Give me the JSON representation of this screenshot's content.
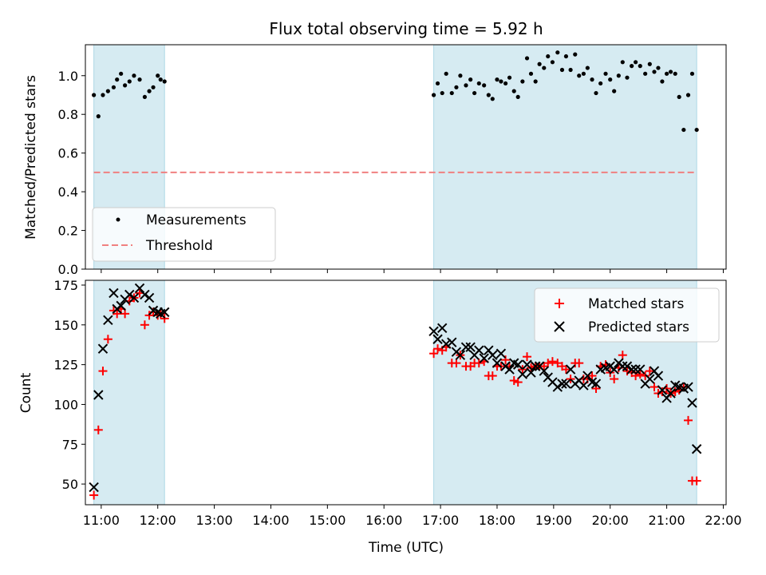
{
  "title": "Flux total observing time = 5.92 h",
  "chart_data": [
    {
      "type": "scatter",
      "ylabel": "Matched/Predicted stars",
      "xlabel": "",
      "xlim": [
        10.72,
        22.05
      ],
      "ylim": [
        0.0,
        1.16
      ],
      "yticks": [
        0.0,
        0.2,
        0.4,
        0.6,
        0.8,
        1.0
      ],
      "ytick_labels": [
        "0.0",
        "0.2",
        "0.4",
        "0.6",
        "0.8",
        "1.0"
      ],
      "legend_position": "lower-left",
      "observing_windows": [
        [
          10.87,
          12.12
        ],
        [
          16.88,
          21.53
        ]
      ],
      "series": [
        {
          "name": "Measurements",
          "marker": "dot",
          "color": "#000000",
          "x": [
            10.87,
            10.95,
            11.03,
            11.12,
            11.22,
            11.28,
            11.35,
            11.42,
            11.5,
            11.58,
            11.68,
            11.77,
            11.85,
            11.92,
            12.0,
            12.05,
            12.12,
            16.88,
            16.95,
            17.03,
            17.1,
            17.2,
            17.28,
            17.35,
            17.45,
            17.53,
            17.6,
            17.68,
            17.77,
            17.85,
            17.92,
            18.0,
            18.07,
            18.15,
            18.22,
            18.3,
            18.37,
            18.45,
            18.53,
            18.6,
            18.68,
            18.75,
            18.83,
            18.9,
            18.98,
            19.07,
            19.15,
            19.22,
            19.3,
            19.38,
            19.45,
            19.53,
            19.6,
            19.68,
            19.75,
            19.83,
            19.92,
            20.0,
            20.07,
            20.15,
            20.22,
            20.3,
            20.38,
            20.45,
            20.53,
            20.62,
            20.7,
            20.78,
            20.85,
            20.92,
            21.0,
            21.07,
            21.15,
            21.22,
            21.3,
            21.38,
            21.45,
            21.53
          ],
          "y": [
            0.9,
            0.79,
            0.9,
            0.92,
            0.94,
            0.98,
            1.01,
            0.95,
            0.97,
            1.0,
            0.98,
            0.89,
            0.92,
            0.94,
            1.0,
            0.98,
            0.97,
            0.9,
            0.96,
            0.91,
            1.01,
            0.91,
            0.94,
            1.0,
            0.95,
            0.98,
            0.91,
            0.96,
            0.95,
            0.9,
            0.88,
            0.98,
            0.97,
            0.96,
            0.99,
            0.92,
            0.89,
            0.97,
            1.09,
            1.01,
            0.97,
            1.06,
            1.04,
            1.1,
            1.07,
            1.12,
            1.03,
            1.1,
            1.03,
            1.11,
            1.0,
            1.01,
            1.04,
            0.98,
            0.91,
            0.96,
            1.01,
            0.98,
            0.92,
            1.0,
            1.07,
            0.99,
            1.05,
            1.07,
            1.05,
            1.01,
            1.06,
            1.02,
            1.04,
            0.97,
            1.01,
            1.02,
            1.01,
            0.89,
            0.72,
            0.9,
            1.01,
            0.72
          ]
        },
        {
          "name": "Threshold",
          "marker": "dashed-line",
          "color": "#f08080",
          "x": [
            10.87,
            21.53
          ],
          "y": [
            0.5,
            0.5
          ]
        }
      ]
    },
    {
      "type": "scatter",
      "ylabel": "Count",
      "xlabel": "Time (UTC)",
      "xlim": [
        10.72,
        22.05
      ],
      "ylim": [
        37,
        178
      ],
      "yticks": [
        50,
        75,
        100,
        125,
        150,
        175
      ],
      "ytick_labels": [
        "50",
        "75",
        "100",
        "125",
        "150",
        "175"
      ],
      "xticks": [
        11,
        12,
        13,
        14,
        15,
        16,
        17,
        18,
        19,
        20,
        21,
        22
      ],
      "xtick_labels": [
        "11:00",
        "12:00",
        "13:00",
        "14:00",
        "15:00",
        "16:00",
        "17:00",
        "18:00",
        "19:00",
        "20:00",
        "21:00",
        "22:00"
      ],
      "legend_position": "top-right",
      "observing_windows": [
        [
          10.87,
          12.12
        ],
        [
          16.88,
          21.53
        ]
      ],
      "series": [
        {
          "name": "Matched stars",
          "marker": "plus",
          "color": "#ff0000",
          "x": [
            10.87,
            10.95,
            11.03,
            11.12,
            11.22,
            11.28,
            11.35,
            11.42,
            11.5,
            11.58,
            11.68,
            11.77,
            11.85,
            11.92,
            12.0,
            12.05,
            12.12,
            16.88,
            16.95,
            17.03,
            17.1,
            17.2,
            17.28,
            17.35,
            17.45,
            17.53,
            17.6,
            17.68,
            17.77,
            17.85,
            17.92,
            18.0,
            18.07,
            18.15,
            18.22,
            18.3,
            18.37,
            18.45,
            18.53,
            18.6,
            18.68,
            18.75,
            18.83,
            18.9,
            18.98,
            19.07,
            19.15,
            19.22,
            19.3,
            19.38,
            19.45,
            19.53,
            19.6,
            19.68,
            19.75,
            19.83,
            19.92,
            20.0,
            20.07,
            20.15,
            20.22,
            20.3,
            20.38,
            20.45,
            20.53,
            20.62,
            20.7,
            20.78,
            20.85,
            20.92,
            21.0,
            21.07,
            21.15,
            21.22,
            21.3,
            21.38,
            21.45,
            21.53
          ],
          "y": [
            43,
            84,
            121,
            141,
            159,
            157,
            160,
            157,
            165,
            167,
            170,
            150,
            156,
            158,
            156,
            157,
            154,
            132,
            135,
            134,
            136,
            126,
            126,
            131,
            124,
            124,
            126,
            126,
            127,
            118,
            118,
            124,
            124,
            128,
            124,
            115,
            114,
            122,
            130,
            123,
            124,
            124,
            124,
            126,
            127,
            126,
            124,
            122,
            116,
            126,
            126,
            116,
            116,
            118,
            110,
            124,
            125,
            120,
            116,
            123,
            131,
            121,
            120,
            118,
            119,
            118,
            121,
            111,
            107,
            108,
            110,
            107,
            108,
            109,
            111,
            90,
            52,
            52
          ]
        },
        {
          "name": "Predicted stars",
          "marker": "x",
          "color": "#000000",
          "x": [
            10.87,
            10.95,
            11.03,
            11.12,
            11.22,
            11.28,
            11.35,
            11.42,
            11.5,
            11.58,
            11.68,
            11.77,
            11.85,
            11.92,
            12.0,
            12.05,
            12.12,
            16.88,
            16.95,
            17.03,
            17.1,
            17.2,
            17.28,
            17.35,
            17.45,
            17.53,
            17.6,
            17.68,
            17.77,
            17.85,
            17.92,
            18.0,
            18.07,
            18.15,
            18.22,
            18.3,
            18.37,
            18.45,
            18.53,
            18.6,
            18.68,
            18.75,
            18.83,
            18.9,
            18.98,
            19.07,
            19.15,
            19.22,
            19.3,
            19.38,
            19.45,
            19.53,
            19.6,
            19.68,
            19.75,
            19.83,
            19.92,
            20.0,
            20.07,
            20.15,
            20.22,
            20.3,
            20.38,
            20.45,
            20.53,
            20.62,
            20.7,
            20.78,
            20.85,
            20.92,
            21.0,
            21.07,
            21.15,
            21.22,
            21.3,
            21.38,
            21.45,
            21.53
          ],
          "y": [
            48,
            106,
            135,
            153,
            170,
            160,
            162,
            166,
            169,
            167,
            173,
            169,
            167,
            159,
            158,
            157,
            158,
            146,
            141,
            148,
            138,
            139,
            133,
            131,
            136,
            136,
            131,
            134,
            129,
            134,
            131,
            126,
            132,
            124,
            122,
            126,
            125,
            119,
            125,
            120,
            124,
            124,
            121,
            117,
            114,
            111,
            113,
            113,
            122,
            113,
            115,
            112,
            118,
            114,
            113,
            122,
            123,
            124,
            122,
            126,
            124,
            124,
            122,
            122,
            122,
            113,
            116,
            121,
            118,
            109,
            104,
            107,
            112,
            111,
            110,
            111,
            101,
            72
          ]
        }
      ]
    }
  ]
}
